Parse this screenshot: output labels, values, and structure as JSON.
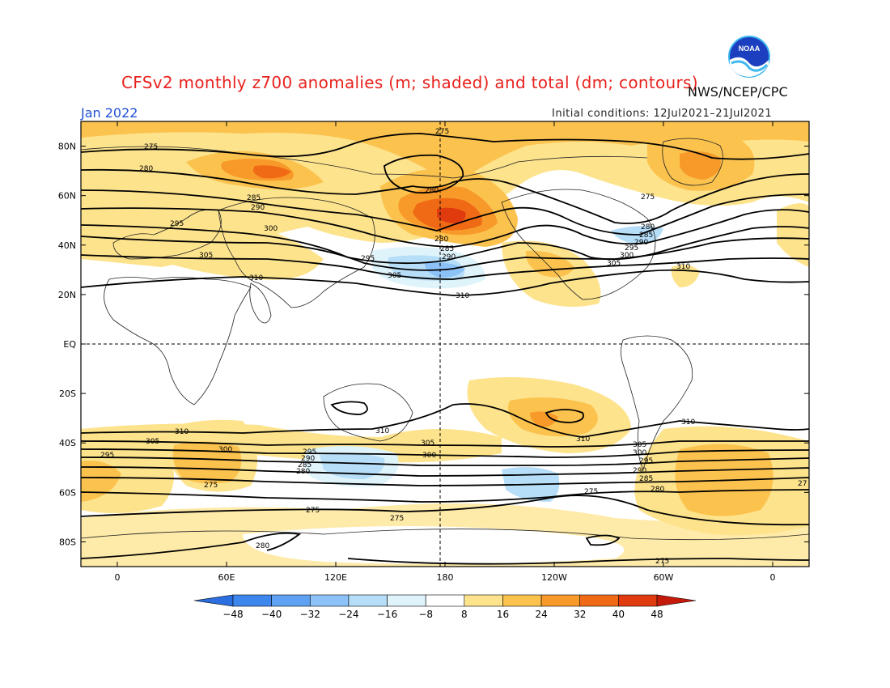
{
  "header": {
    "title": "CFSv2 monthly z700 anomalies (m; shaded) and total (dm; contours)",
    "agency": "NWS/NCEP/CPC",
    "month": "Jan 2022",
    "initial_conditions": "Initial conditions: 12Jul2021–21Jul2021"
  },
  "logo": {
    "text": "NOAA",
    "icon": "noaa-logo"
  },
  "axes": {
    "lat_labels": [
      "80N",
      "60N",
      "40N",
      "20N",
      "EQ",
      "20S",
      "40S",
      "60S",
      "80S"
    ],
    "lat_values": [
      80,
      60,
      40,
      20,
      0,
      -20,
      -40,
      -60,
      -80
    ],
    "lon_labels": [
      "0",
      "60E",
      "120E",
      "180",
      "120W",
      "60W",
      "0"
    ],
    "lon_values": [
      0,
      60,
      120,
      180,
      240,
      300,
      360
    ],
    "lat_range": [
      -90,
      90
    ],
    "lon_range": [
      -20,
      380
    ]
  },
  "colorbar": {
    "ticks": [
      "-48",
      "-40",
      "-32",
      "-24",
      "-16",
      "-8",
      "8",
      "16",
      "24",
      "32",
      "40",
      "48"
    ],
    "colors": [
      "#2a6ee0",
      "#3d86ee",
      "#5fa2f4",
      "#8cc2f8",
      "#b6def8",
      "#dff3fb",
      "#ffffff",
      "#fde38c",
      "#fbc24e",
      "#f79a2a",
      "#f06a16",
      "#e03b0f",
      "#c51a0a"
    ]
  },
  "contour_labels": [
    "275",
    "280",
    "285",
    "290",
    "295",
    "300",
    "305",
    "310",
    "27"
  ],
  "chart_data": {
    "type": "heatmap",
    "title": "CFSv2 monthly z700 anomalies (m; shaded) and total (dm; contours)",
    "variable": "700 hPa geopotential height",
    "anomaly_units": "m",
    "total_units": "dm",
    "valid_month": "Jan 2022",
    "shading_levels": [
      -48,
      -40,
      -32,
      -24,
      -16,
      -8,
      8,
      16,
      24,
      32,
      40,
      48
    ],
    "anomaly_regions": [
      {
        "lon": 180,
        "lat": 55,
        "anomaly": 40,
        "sign": "positive"
      },
      {
        "lon": 85,
        "lat": 68,
        "anomaly": 32,
        "sign": "positive"
      },
      {
        "lon": 320,
        "lat": 68,
        "anomaly": 24,
        "sign": "positive"
      },
      {
        "lon": 175,
        "lat": 28,
        "anomaly": -24,
        "sign": "negative"
      },
      {
        "lon": 135,
        "lat": -53,
        "anomaly": -16,
        "sign": "negative"
      },
      {
        "lon": 230,
        "lat": -32,
        "anomaly": 32,
        "sign": "positive"
      },
      {
        "lon": 340,
        "lat": -58,
        "anomaly": 24,
        "sign": "positive"
      },
      {
        "lon": 35,
        "lat": -52,
        "anomaly": 16,
        "sign": "positive"
      }
    ],
    "contour_levels_dm": [
      275,
      280,
      285,
      290,
      295,
      300,
      305,
      310
    ]
  }
}
